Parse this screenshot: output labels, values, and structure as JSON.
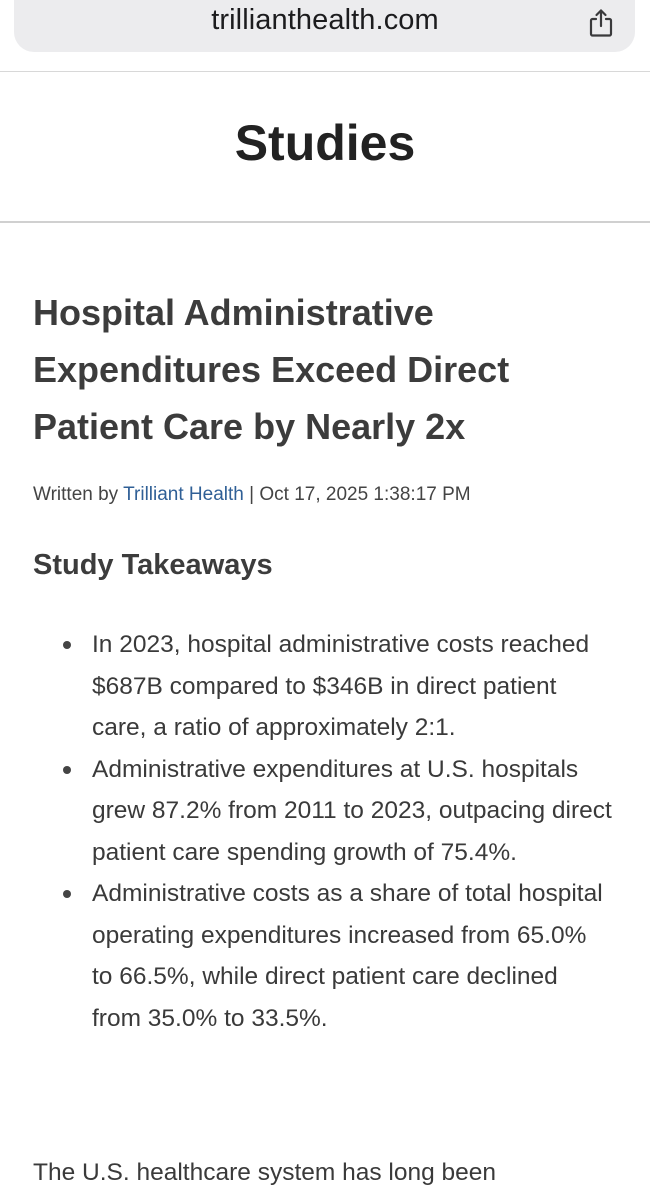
{
  "browser": {
    "url": "trillianthealth.com"
  },
  "site": {
    "title": "Studies"
  },
  "article": {
    "title": "Hospital Administrative Expenditures Exceed Direct Patient Care by Nearly 2x",
    "byline_prefix": "Written by",
    "author": "Trilliant Health",
    "byline_sep": " | ",
    "date": "Oct 17, 2025 1:38:17 PM",
    "section_heading": "Study Takeaways",
    "takeaways": [
      "In 2023, hospital administrative costs reached $687B compared to $346B in direct patient care, a ratio of approximately 2:1.",
      "Administrative expenditures at U.S. hospitals grew 87.2% from 2011 to 2023, outpacing direct patient care spending growth of 75.4%.",
      "Administrative costs as a share of total hospital operating expenditures increased from 65.0% to 66.5%, while direct patient care declined from 35.0% to 33.5%."
    ],
    "body_start": "The U.S. healthcare system has long been"
  },
  "icons": {
    "share": "share-icon"
  }
}
